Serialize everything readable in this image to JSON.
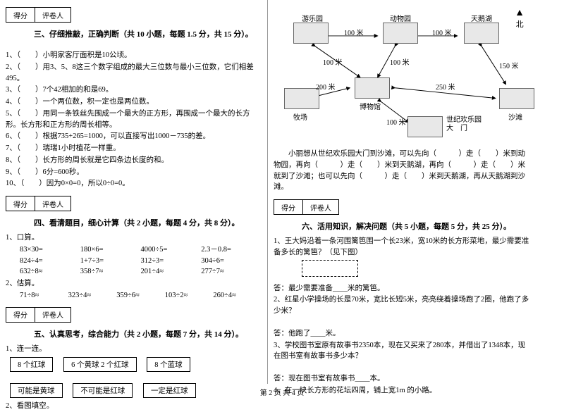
{
  "section3": {
    "scoreLabel": "得分",
    "reviewerLabel": "评卷人",
    "title": "三、仔细推敲，正确判断（共 10 小题，每题 1.5 分，共 15 分）。",
    "items": [
      "1、（　　）小明家客厅面积是10公顷。",
      "2、（　　）用3、5、8这三个数字组成的最大三位数与最小三位数，它们相差495。",
      "3、（　　）7个42相加的和是69。",
      "4、（　　）一个两位数，积一定也是两位数。",
      "5、（　　）用同一条铁丝先围成一个最大的正方形，再围成一个最大的长方形。长方形和正方形的周长相等。",
      "6、（　　）根据735+265=1000，可以直接写出1000－735的差。",
      "7、（　　）瑞瑞1小时植花一样重。",
      "8、（　　）长方形的周长就是它四条边长度的和。",
      "9、（　　）6分=600秒。",
      "10、（　　）因为0×0=0，所以0÷0=0。"
    ]
  },
  "section4": {
    "title": "四、看清题目，细心计算（共 2 小题，每题 4 分，共 8 分）。",
    "q1Label": "1、口算。",
    "rows": [
      [
        "83×30=",
        "180×6=",
        "4000÷5=",
        "2.3－0.8="
      ],
      [
        "824÷4=",
        "1+7÷3=",
        "312÷3=",
        "304÷6="
      ],
      [
        "632÷8≈",
        "358÷7≈",
        "201÷4≈",
        "277÷7≈"
      ]
    ],
    "q2Label": "2、估算。",
    "row2": [
      "71÷8≈",
      "323÷4≈",
      "359÷6≈",
      "103÷2≈",
      "260÷4≈"
    ]
  },
  "section5": {
    "title": "五、认真思考，综合能力（共 2 小题，每题 7 分，共 14 分）。",
    "q1Label": "1、连一连。",
    "boxes1": [
      "8 个红球",
      "6 个黄球 2 个红球",
      "8 个蓝球"
    ],
    "boxes2": [
      "可能是黄球",
      "不可能是红球",
      "一定是红球"
    ],
    "q2Label": "2、看图填空。"
  },
  "map": {
    "compass": "北",
    "nodes": {
      "park": "游乐园",
      "zoo": "动物园",
      "swan": "天鹅湖",
      "farm": "牧场",
      "museum": "博物馆",
      "beach": "沙滩",
      "gate": "世纪欢乐园\n大　门"
    },
    "distances": {
      "park_zoo": "100 米",
      "zoo_swan": "100 米",
      "park_museum": "100 米",
      "zoo_museum": "100 米",
      "swan_beach": "150 米",
      "farm_museum": "200 米",
      "museum_beach": "250 米",
      "museum_gate": "100 米"
    },
    "question": "　　小丽想从世纪欢乐园大门到沙滩，可以先向（　　　）走（　　）米到动物园，再向（　　　）走（　　）米到天鹅湖，再向（　　　）走（　　）米就到了沙滩；也可以先向（　　　）走（　　）米到天鹅湖，再从天鹅湖到沙滩。"
  },
  "section6": {
    "title": "六、活用知识，解决问题（共 5 小题，每题 5 分，共 25 分）。",
    "q1": "1、王大妈沿着一条河围篱笆围一个长23米，宽10米的长方形菜地，最少需要准备多长的篱笆？（见下图）",
    "a1": "答：最少需要准备____米的篱笆。",
    "q2": "2、红星小学操场的长是70米，宽比长短5米，亮亮绕着操场跑了2圈，他跑了多少米？",
    "a2": "答：他跑了____米。",
    "q3": "3、学校图书室原有故事书2350本，现在又买来了280本，并借出了1348本，现在图书室有故事书多少本？",
    "a3": "答：现在图书室有故事书____本。",
    "q4": "4、在一块长方形的花坛四周，铺上宽1m 的小路。"
  },
  "footer": "第 2 页 共 4 页"
}
